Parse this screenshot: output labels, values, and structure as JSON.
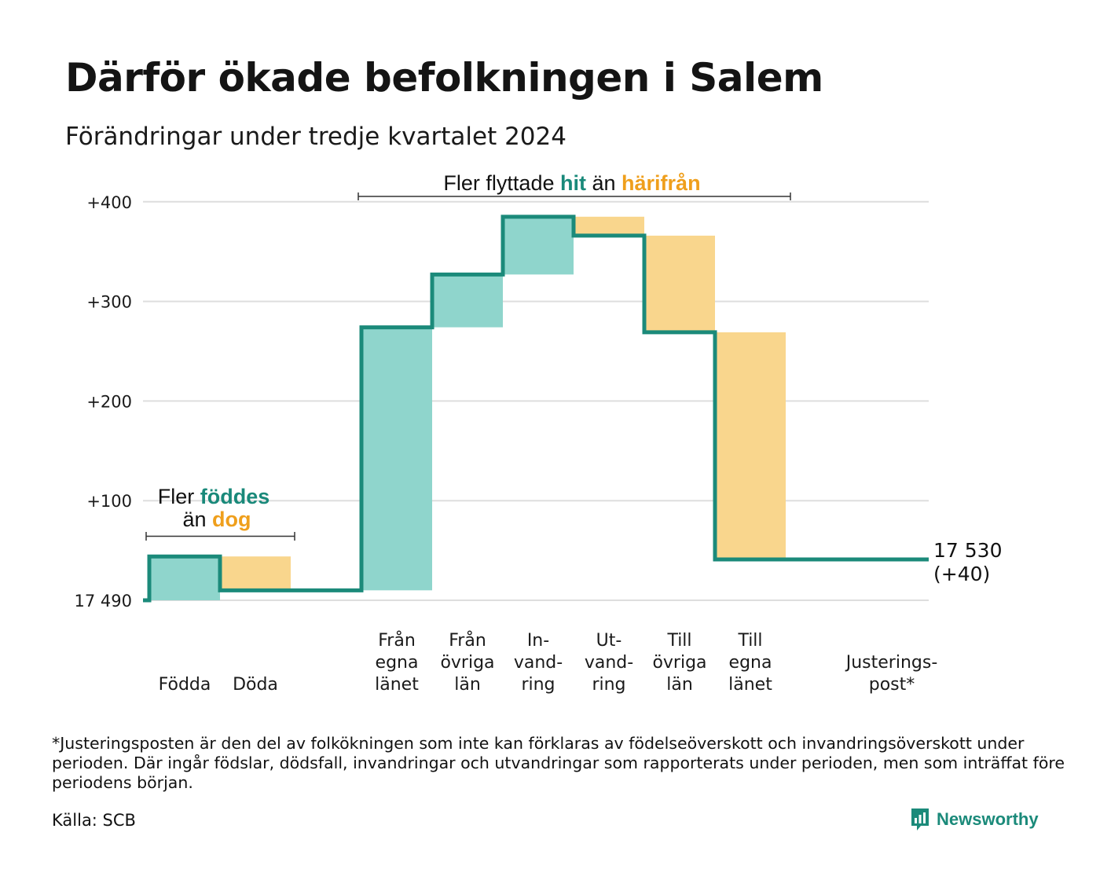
{
  "header": {
    "title": "Därför ökade befolkningen i Salem",
    "subtitle": "Förändringar under tredje kvartalet 2024"
  },
  "chart_data": {
    "type": "waterfall",
    "base_value": 17490,
    "base_label": "17 490",
    "y_ticks": [
      {
        "value": 0,
        "label": "17 490"
      },
      {
        "value": 100,
        "label": "+100"
      },
      {
        "value": 200,
        "label": "+200"
      },
      {
        "value": 300,
        "label": "+300"
      },
      {
        "value": 400,
        "label": "+400"
      }
    ],
    "ylim": [
      0,
      420
    ],
    "grid": true,
    "steps": [
      {
        "label": [
          "Födda"
        ],
        "delta": 44,
        "kind": "increase"
      },
      {
        "label": [
          "Döda"
        ],
        "delta": -34,
        "kind": "decrease"
      },
      {
        "label": [],
        "delta": 0,
        "kind": "none"
      },
      {
        "label": [
          "Från",
          "egna",
          "länet"
        ],
        "delta": 264,
        "kind": "increase"
      },
      {
        "label": [
          "Från",
          "övriga",
          "län"
        ],
        "delta": 53,
        "kind": "increase"
      },
      {
        "label": [
          "In-",
          "vand-",
          "ring"
        ],
        "delta": 58,
        "kind": "increase"
      },
      {
        "label": [
          "Ut-",
          "vand-",
          "ring"
        ],
        "delta": -19,
        "kind": "decrease"
      },
      {
        "label": [
          "Till",
          "övriga",
          "län"
        ],
        "delta": -97,
        "kind": "decrease"
      },
      {
        "label": [
          "Till",
          "egna",
          "länet"
        ],
        "delta": -228,
        "kind": "decrease"
      },
      {
        "label": [],
        "delta": 0,
        "kind": "none"
      },
      {
        "label": [
          "Justerings-",
          "post*"
        ],
        "delta": 0,
        "kind": "none"
      }
    ],
    "end_label": [
      "17 530",
      "(+40)"
    ],
    "annotations": {
      "births": {
        "line1_prefix": "Fler ",
        "line1_highlight": "föddes",
        "line2_prefix": "än ",
        "line2_highlight": "dog"
      },
      "migration": {
        "prefix": "Fler flyttade ",
        "highlight1": "hit",
        "middle": " än ",
        "highlight2": "härifrån"
      }
    },
    "colors": {
      "increase_fill": "#8fd5cc",
      "decrease_fill": "#f9d68d",
      "line": "#1b8a7a",
      "grid": "#dedede",
      "highlight_teal": "#19897a",
      "highlight_orange": "#ef9f1c"
    }
  },
  "footer": {
    "footnote": "*Justeringsposten är den del av folkökningen som inte kan förklaras av födelseöverskott och invandringsöverskott under perioden. Där ingår födslar, dödsfall, invandringar och utvandringar som rapporterats under perioden, men som inträffat före periodens början.",
    "source": "Källa: SCB",
    "brand": "Newsworthy",
    "brand_icon": "bar-chart-logo-icon"
  }
}
